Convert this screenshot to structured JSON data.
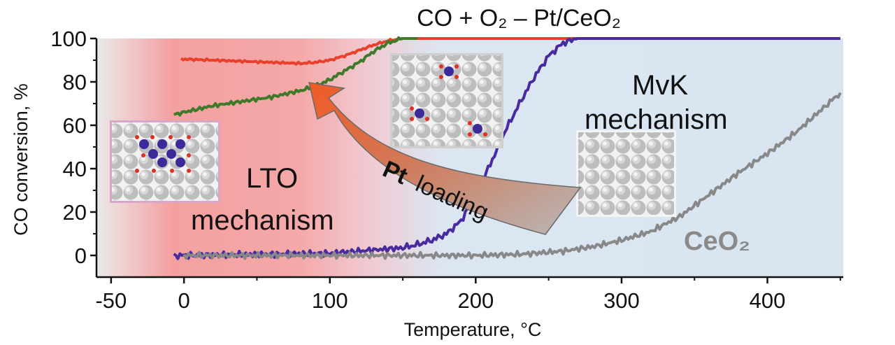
{
  "chart_data": {
    "type": "line",
    "title": "CO + O₂ – Pt/CeO₂",
    "xlabel": "Temperature, °C",
    "ylabel": "CO conversion, %",
    "xlim": [
      -60,
      452
    ],
    "ylim": [
      -10,
      100
    ],
    "x_ticks": [
      -50,
      0,
      100,
      200,
      300,
      400
    ],
    "y_ticks": [
      0,
      20,
      40,
      60,
      80,
      100
    ],
    "grid": false,
    "series": [
      {
        "color": "#e8402a",
        "x": [
          -2,
          20,
          40,
          60,
          80,
          90,
          100,
          110,
          120,
          130,
          140,
          150,
          170,
          200,
          300,
          450
        ],
        "y": [
          90.5,
          90,
          89.5,
          89,
          88.5,
          89,
          90,
          92,
          94.5,
          97,
          99,
          100,
          100,
          100,
          100,
          100
        ]
      },
      {
        "color": "#3f7a2a",
        "x": [
          -7,
          0,
          20,
          40,
          60,
          80,
          90,
          100,
          110,
          120,
          130,
          140,
          150,
          160
        ],
        "y": [
          65,
          66,
          69,
          71,
          73,
          76,
          78,
          81,
          85,
          89,
          94,
          98,
          100,
          100
        ]
      },
      {
        "color": "#4a2aa0",
        "x": [
          -7,
          0,
          50,
          100,
          130,
          150,
          160,
          170,
          180,
          190,
          200,
          210,
          220,
          230,
          240,
          250,
          260,
          270,
          280,
          290,
          300,
          350,
          450
        ],
        "y": [
          0,
          0,
          0.5,
          1,
          2.5,
          3.5,
          5,
          7,
          10,
          16,
          28,
          42,
          57,
          70,
          82,
          92,
          98,
          100,
          100,
          100,
          100,
          100,
          100
        ]
      },
      {
        "color": "#888888",
        "x": [
          0,
          100,
          150,
          200,
          230,
          260,
          280,
          300,
          320,
          340,
          360,
          380,
          400,
          420,
          440,
          450
        ],
        "y": [
          0,
          0,
          0,
          0,
          0.5,
          2,
          4,
          7,
          11,
          18,
          28,
          38,
          47,
          57,
          69,
          75
        ]
      }
    ],
    "annotations": {
      "lto_line1": "LTO",
      "lto_line2": "mechanism",
      "mvk_line1": "MvK",
      "mvk_line2": "mechanism",
      "ceo2_label": "CeO₂",
      "arrow_bold": "Pt",
      "arrow_rest": "loading"
    },
    "background_colors": {
      "lto_region": "#f3a3a3",
      "mvk_region": "#dbe6f1",
      "neutral": "#e8e8e8"
    }
  }
}
